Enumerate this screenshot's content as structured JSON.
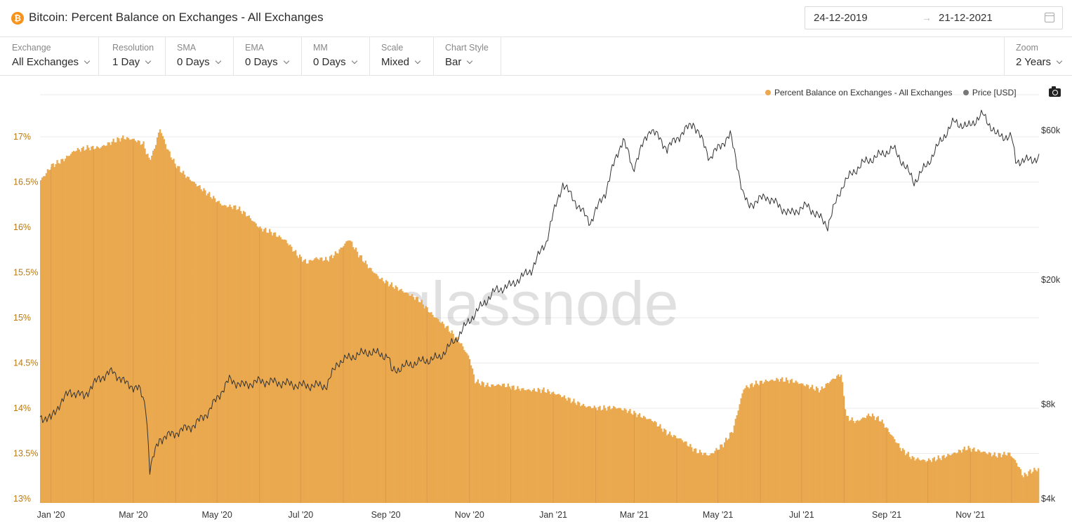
{
  "header": {
    "coin_symbol": "₿",
    "title": "Bitcoin: Percent Balance on Exchanges - All Exchanges",
    "date_start": "24-12-2019",
    "date_arrow": "→",
    "date_end": "21-12-2021"
  },
  "controls": [
    {
      "label": "Exchange",
      "value": "All Exchanges"
    },
    {
      "label": "Resolution",
      "value": "1 Day"
    },
    {
      "label": "SMA",
      "value": "0 Days"
    },
    {
      "label": "EMA",
      "value": "0 Days"
    },
    {
      "label": "MM",
      "value": "0 Days"
    },
    {
      "label": "Scale",
      "value": "Mixed"
    },
    {
      "label": "Chart Style",
      "value": "Bar"
    }
  ],
  "zoom": {
    "label": "Zoom",
    "value": "2 Years"
  },
  "watermark": "glassnode",
  "colors": {
    "bars": "#eaa94f",
    "price_line": "#333333",
    "left_axis": "#b8780f",
    "grid": "#ebebeb"
  },
  "chart_data": {
    "type": "bar",
    "legend_position": "top-right",
    "grid": true,
    "series": [
      {
        "name": "Percent Balance on Exchanges - All Exchanges",
        "type": "bar",
        "axis": "left",
        "color": "#eaa94f",
        "unit": "%",
        "points": [
          [
            "2019-12-24",
            16.52
          ],
          [
            "2020-01-01",
            16.68
          ],
          [
            "2020-01-10",
            16.75
          ],
          [
            "2020-01-18",
            16.85
          ],
          [
            "2020-01-28",
            16.88
          ],
          [
            "2020-02-05",
            16.88
          ],
          [
            "2020-02-15",
            16.95
          ],
          [
            "2020-02-22",
            16.99
          ],
          [
            "2020-03-01",
            16.97
          ],
          [
            "2020-03-08",
            16.92
          ],
          [
            "2020-03-12",
            16.75
          ],
          [
            "2020-03-15",
            16.82
          ],
          [
            "2020-03-20",
            17.09
          ],
          [
            "2020-03-25",
            16.88
          ],
          [
            "2020-03-31",
            16.7
          ],
          [
            "2020-04-07",
            16.58
          ],
          [
            "2020-04-15",
            16.48
          ],
          [
            "2020-04-25",
            16.36
          ],
          [
            "2020-05-05",
            16.24
          ],
          [
            "2020-05-15",
            16.22
          ],
          [
            "2020-05-23",
            16.13
          ],
          [
            "2020-06-01",
            15.99
          ],
          [
            "2020-06-10",
            15.94
          ],
          [
            "2020-06-20",
            15.85
          ],
          [
            "2020-06-28",
            15.7
          ],
          [
            "2020-07-05",
            15.61
          ],
          [
            "2020-07-12",
            15.66
          ],
          [
            "2020-07-20",
            15.64
          ],
          [
            "2020-07-28",
            15.73
          ],
          [
            "2020-08-05",
            15.87
          ],
          [
            "2020-08-12",
            15.7
          ],
          [
            "2020-08-20",
            15.55
          ],
          [
            "2020-08-28",
            15.43
          ],
          [
            "2020-09-05",
            15.36
          ],
          [
            "2020-09-15",
            15.28
          ],
          [
            "2020-09-25",
            15.2
          ],
          [
            "2020-10-05",
            15.03
          ],
          [
            "2020-10-15",
            14.9
          ],
          [
            "2020-10-25",
            14.73
          ],
          [
            "2020-11-01",
            14.55
          ],
          [
            "2020-11-05",
            14.3
          ],
          [
            "2020-11-15",
            14.25
          ],
          [
            "2020-11-25",
            14.26
          ],
          [
            "2020-12-05",
            14.22
          ],
          [
            "2020-12-15",
            14.2
          ],
          [
            "2020-12-25",
            14.2
          ],
          [
            "2021-01-05",
            14.15
          ],
          [
            "2021-01-15",
            14.08
          ],
          [
            "2021-01-25",
            14.02
          ],
          [
            "2021-02-05",
            14.0
          ],
          [
            "2021-02-15",
            14.01
          ],
          [
            "2021-02-25",
            13.97
          ],
          [
            "2021-03-05",
            13.92
          ],
          [
            "2021-03-15",
            13.86
          ],
          [
            "2021-03-25",
            13.73
          ],
          [
            "2021-04-05",
            13.65
          ],
          [
            "2021-04-15",
            13.53
          ],
          [
            "2021-04-25",
            13.48
          ],
          [
            "2021-05-05",
            13.6
          ],
          [
            "2021-05-12",
            13.75
          ],
          [
            "2021-05-20",
            14.22
          ],
          [
            "2021-05-28",
            14.27
          ],
          [
            "2021-06-05",
            14.3
          ],
          [
            "2021-06-15",
            14.32
          ],
          [
            "2021-06-25",
            14.3
          ],
          [
            "2021-07-05",
            14.25
          ],
          [
            "2021-07-15",
            14.2
          ],
          [
            "2021-07-22",
            14.3
          ],
          [
            "2021-07-30",
            14.38
          ],
          [
            "2021-08-03",
            13.9
          ],
          [
            "2021-08-10",
            13.85
          ],
          [
            "2021-08-20",
            13.93
          ],
          [
            "2021-08-28",
            13.87
          ],
          [
            "2021-09-05",
            13.7
          ],
          [
            "2021-09-12",
            13.55
          ],
          [
            "2021-09-20",
            13.45
          ],
          [
            "2021-09-30",
            13.42
          ],
          [
            "2021-10-10",
            13.45
          ],
          [
            "2021-10-20",
            13.5
          ],
          [
            "2021-10-30",
            13.56
          ],
          [
            "2021-11-10",
            13.52
          ],
          [
            "2021-11-20",
            13.48
          ],
          [
            "2021-11-30",
            13.5
          ],
          [
            "2021-12-05",
            13.4
          ],
          [
            "2021-12-10",
            13.25
          ],
          [
            "2021-12-15",
            13.3
          ],
          [
            "2021-12-21",
            13.33
          ]
        ]
      },
      {
        "name": "Price [USD]",
        "type": "line",
        "axis": "right",
        "color": "#333333",
        "points": [
          [
            "2019-12-24",
            7300
          ],
          [
            "2020-01-01",
            7200
          ],
          [
            "2020-01-07",
            8000
          ],
          [
            "2020-01-15",
            8800
          ],
          [
            "2020-01-25",
            8500
          ],
          [
            "2020-02-05",
            9700
          ],
          [
            "2020-02-15",
            10200
          ],
          [
            "2020-02-25",
            9300
          ],
          [
            "2020-03-05",
            9000
          ],
          [
            "2020-03-10",
            7900
          ],
          [
            "2020-03-13",
            4950
          ],
          [
            "2020-03-20",
            6200
          ],
          [
            "2020-04-01",
            6500
          ],
          [
            "2020-04-15",
            6900
          ],
          [
            "2020-04-25",
            7600
          ],
          [
            "2020-05-05",
            8900
          ],
          [
            "2020-05-10",
            9600
          ],
          [
            "2020-05-20",
            9200
          ],
          [
            "2020-06-01",
            9500
          ],
          [
            "2020-06-15",
            9400
          ],
          [
            "2020-07-01",
            9200
          ],
          [
            "2020-07-20",
            9200
          ],
          [
            "2020-07-28",
            10900
          ],
          [
            "2020-08-10",
            11500
          ],
          [
            "2020-08-20",
            11800
          ],
          [
            "2020-09-03",
            11400
          ],
          [
            "2020-09-05",
            10200
          ],
          [
            "2020-09-20",
            10800
          ],
          [
            "2020-10-10",
            11300
          ],
          [
            "2020-10-22",
            12900
          ],
          [
            "2020-11-05",
            15600
          ],
          [
            "2020-11-20",
            18500
          ],
          [
            "2020-12-01",
            19200
          ],
          [
            "2020-12-16",
            21500
          ],
          [
            "2020-12-27",
            26500
          ],
          [
            "2021-01-08",
            40500
          ],
          [
            "2021-01-20",
            34000
          ],
          [
            "2021-01-28",
            30500
          ],
          [
            "2021-02-08",
            38000
          ],
          [
            "2021-02-21",
            56500
          ],
          [
            "2021-02-28",
            45000
          ],
          [
            "2021-03-13",
            61000
          ],
          [
            "2021-03-25",
            52500
          ],
          [
            "2021-04-13",
            63500
          ],
          [
            "2021-04-25",
            49000
          ],
          [
            "2021-05-10",
            58000
          ],
          [
            "2021-05-19",
            38000
          ],
          [
            "2021-05-23",
            34500
          ],
          [
            "2021-06-05",
            37000
          ],
          [
            "2021-06-22",
            32500
          ],
          [
            "2021-07-05",
            34500
          ],
          [
            "2021-07-20",
            29800
          ],
          [
            "2021-08-01",
            41000
          ],
          [
            "2021-08-14",
            47000
          ],
          [
            "2021-09-06",
            52500
          ],
          [
            "2021-09-21",
            41000
          ],
          [
            "2021-10-01",
            47000
          ],
          [
            "2021-10-20",
            64000
          ],
          [
            "2021-10-30",
            61500
          ],
          [
            "2021-11-10",
            67500
          ],
          [
            "2021-11-20",
            58000
          ],
          [
            "2021-12-01",
            57000
          ],
          [
            "2021-12-04",
            48000
          ],
          [
            "2021-12-10",
            48000
          ],
          [
            "2021-12-21",
            49000
          ]
        ]
      }
    ],
    "y_left": {
      "ticks": [
        "13%",
        "13.5%",
        "14%",
        "14.5%",
        "15%",
        "15.5%",
        "16%",
        "16.5%",
        "17%"
      ],
      "range": [
        13.0,
        17.0
      ]
    },
    "y_right": {
      "scale": "log",
      "ticks": [
        {
          "label": "$4k",
          "value": 4000
        },
        {
          "label": "$8k",
          "value": 8000
        },
        {
          "label": "$20k",
          "value": 20000
        },
        {
          "label": "$60k",
          "value": 60000
        }
      ]
    },
    "x_ticks": [
      {
        "label": "Jan '20",
        "date": "2020-01-01"
      },
      {
        "label": "Mar '20",
        "date": "2020-03-01"
      },
      {
        "label": "May '20",
        "date": "2020-05-01"
      },
      {
        "label": "Jul '20",
        "date": "2020-07-01"
      },
      {
        "label": "Sep '20",
        "date": "2020-09-01"
      },
      {
        "label": "Nov '20",
        "date": "2020-11-01"
      },
      {
        "label": "Jan '21",
        "date": "2021-01-01"
      },
      {
        "label": "Mar '21",
        "date": "2021-03-01"
      },
      {
        "label": "May '21",
        "date": "2021-05-01"
      },
      {
        "label": "Jul '21",
        "date": "2021-07-01"
      },
      {
        "label": "Sep '21",
        "date": "2021-09-01"
      },
      {
        "label": "Nov '21",
        "date": "2021-11-01"
      }
    ]
  }
}
